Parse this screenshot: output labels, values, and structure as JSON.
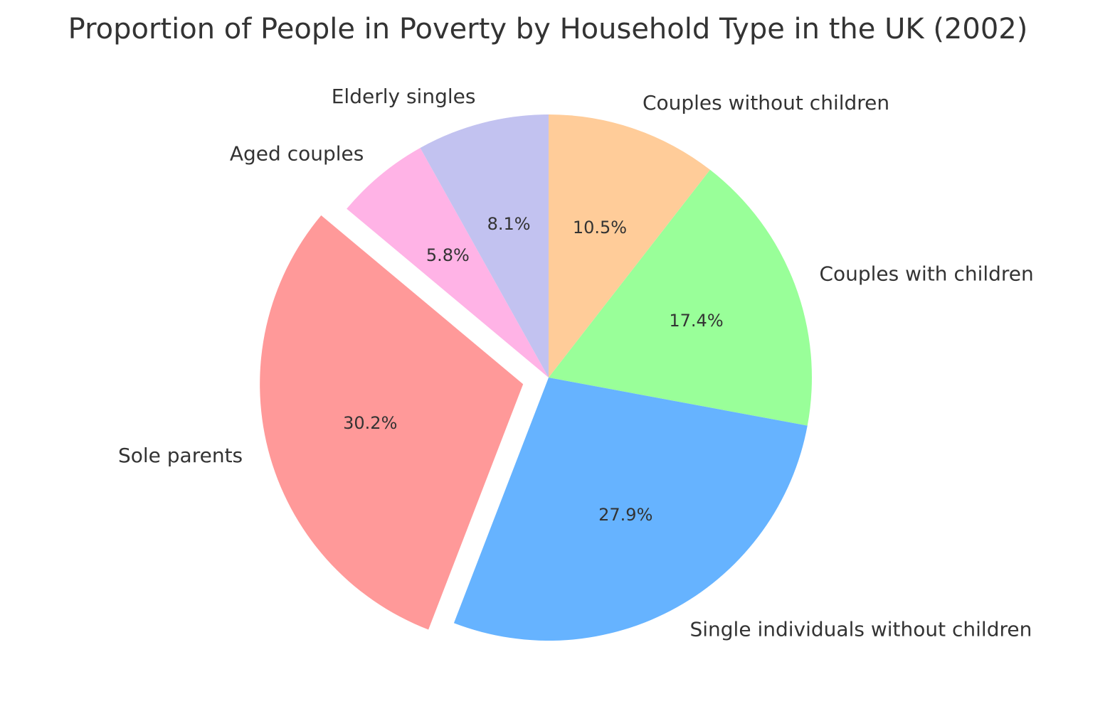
{
  "chart_data": {
    "type": "pie",
    "title": "Proportion of People in Poverty by Household Type in the UK (2002)",
    "start_angle_deg": 90,
    "direction": "clockwise",
    "exploded_slice": "Sole parents",
    "slices": [
      {
        "label": "Couples without children",
        "value": 10.5,
        "pct_label": "10.5%",
        "color": "#ffcc99"
      },
      {
        "label": "Couples with children",
        "value": 17.4,
        "pct_label": "17.4%",
        "color": "#99ff99"
      },
      {
        "label": "Single individuals without children",
        "value": 27.9,
        "pct_label": "27.9%",
        "color": "#66b3ff"
      },
      {
        "label": "Sole parents",
        "value": 30.2,
        "pct_label": "30.2%",
        "color": "#ff9999"
      },
      {
        "label": "Aged couples",
        "value": 5.8,
        "pct_label": "5.8%",
        "color": "#ffb3e6"
      },
      {
        "label": "Elderly singles",
        "value": 8.1,
        "pct_label": "8.1%",
        "color": "#c2c2f0"
      }
    ]
  }
}
